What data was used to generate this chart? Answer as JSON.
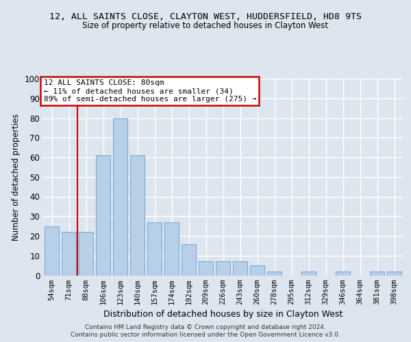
{
  "title_line1": "12, ALL SAINTS CLOSE, CLAYTON WEST, HUDDERSFIELD, HD8 9TS",
  "title_line2": "Size of property relative to detached houses in Clayton West",
  "xlabel": "Distribution of detached houses by size in Clayton West",
  "ylabel": "Number of detached properties",
  "categories": [
    "54sqm",
    "71sqm",
    "88sqm",
    "106sqm",
    "123sqm",
    "140sqm",
    "157sqm",
    "174sqm",
    "192sqm",
    "209sqm",
    "226sqm",
    "243sqm",
    "260sqm",
    "278sqm",
    "295sqm",
    "312sqm",
    "329sqm",
    "346sqm",
    "364sqm",
    "381sqm",
    "398sqm"
  ],
  "values": [
    25,
    22,
    22,
    61,
    80,
    61,
    27,
    27,
    16,
    7,
    7,
    7,
    5,
    2,
    0,
    2,
    0,
    2,
    0,
    2,
    2
  ],
  "bar_color": "#b8cfe8",
  "bar_edge_color": "#7aacd4",
  "red_line_x": 1.5,
  "ylim": [
    0,
    100
  ],
  "yticks": [
    0,
    10,
    20,
    30,
    40,
    50,
    60,
    70,
    80,
    90,
    100
  ],
  "annotation_text": "12 ALL SAINTS CLOSE: 80sqm\n← 11% of detached houses are smaller (34)\n89% of semi-detached houses are larger (275) →",
  "annotation_box_facecolor": "#ffffff",
  "annotation_box_edgecolor": "#cc0000",
  "bg_color": "#dde5ef",
  "plot_bg_color": "#dde5ef",
  "grid_color": "#ffffff",
  "footer_line1": "Contains HM Land Registry data © Crown copyright and database right 2024.",
  "footer_line2": "Contains public sector information licensed under the Open Government Licence v3.0."
}
